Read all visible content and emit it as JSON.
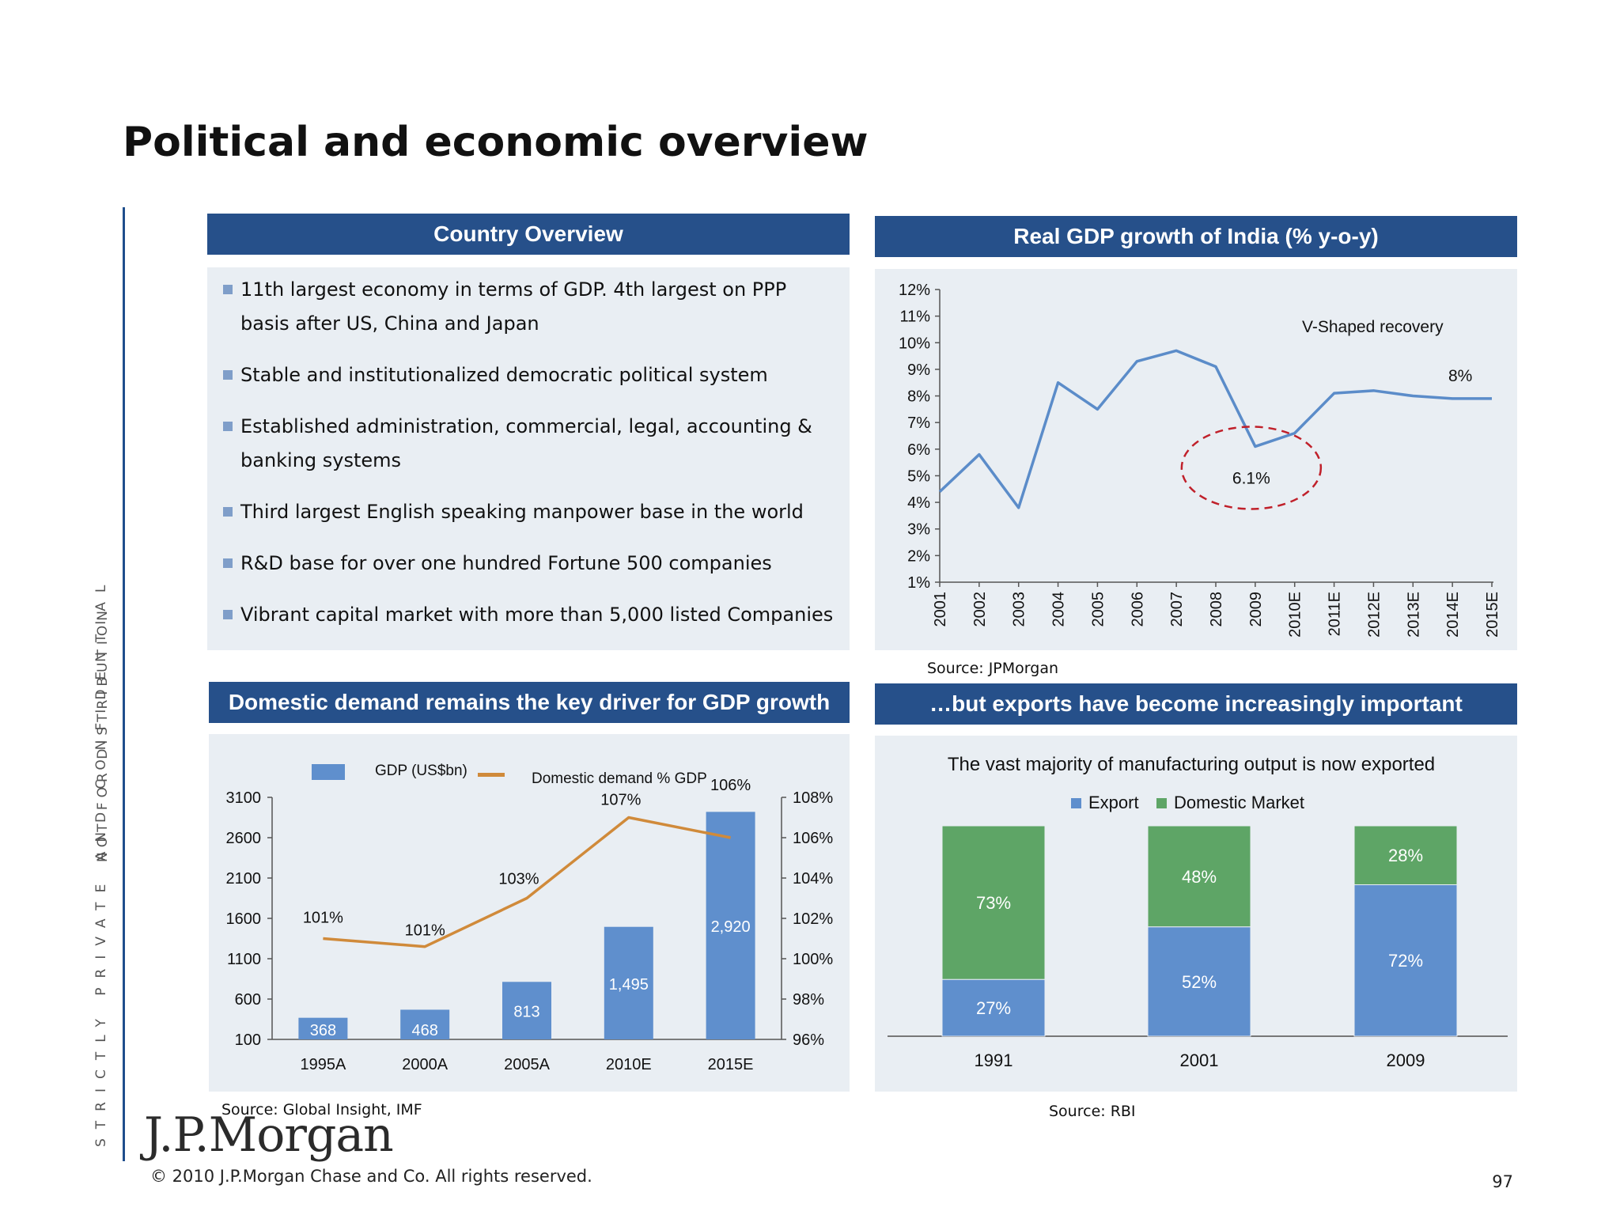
{
  "page": {
    "title": "Political and economic overview",
    "vertical_label_1": "STRICTLY PRIVATE AND CONFIDENTIAL",
    "vertical_label_2": "NOT FOR DISTRIBUTION",
    "logo_text": "J.P.Morgan",
    "copyright": "© 2010 J.P.Morgan Chase and Co.  All rights reserved.",
    "page_number": "97"
  },
  "country_overview": {
    "header": "Country Overview",
    "items": [
      "11th  largest economy in terms of GDP. 4th largest on PPP basis after US, China and Japan",
      "Stable and institutionalized democratic political system",
      " Established administration, commercial, legal, accounting & banking systems",
      "Third largest English speaking manpower base in the world",
      "R&D base for over one hundred Fortune 500 companies",
      "Vibrant capital market with more than 5,000 listed Companies"
    ]
  },
  "gdp_growth_panel": {
    "header": "Real GDP growth of India (% y-o-y)",
    "source": "Source: JPMorgan",
    "annotation": "V-Shaped recovery",
    "callout_2009": "6.1%",
    "callout_last": "8%"
  },
  "domestic_panel": {
    "header": "Domestic demand remains the key driver for GDP growth",
    "source": "Source: Global Insight, IMF"
  },
  "exports_panel": {
    "header": "…but exports have become increasingly important",
    "subtitle": "The vast majority of manufacturing output is now exported",
    "source": "Source: RBI"
  },
  "colors": {
    "header_blue": "#26508a",
    "panel_bg": "#e9eef3",
    "line_blue": "#5b8cc9",
    "bar_blue": "#5f8fcd",
    "domestic_orange": "#d08a3a",
    "export_green": "#5ea566",
    "circle_red": "#c0202a"
  },
  "chart_data": [
    {
      "type": "line",
      "title": "Real GDP growth of India (% y-o-y)",
      "x": [
        "2001",
        "2002",
        "2003",
        "2004",
        "2005",
        "2006",
        "2007",
        "2008",
        "2009",
        "2010E",
        "2011E",
        "2012E",
        "2013E",
        "2014E",
        "2015E"
      ],
      "y": [
        4.4,
        5.8,
        3.8,
        8.5,
        7.5,
        9.3,
        9.7,
        9.1,
        6.1,
        6.6,
        8.1,
        8.2,
        8.0,
        7.9,
        7.9
      ],
      "y_unit": "%",
      "ylim": [
        1,
        12
      ],
      "yticks": [
        "1%",
        "2%",
        "3%",
        "4%",
        "5%",
        "6%",
        "7%",
        "8%",
        "9%",
        "10%",
        "11%",
        "12%"
      ],
      "annotations": [
        "V-Shaped recovery",
        "6.1%",
        "8%"
      ],
      "grid": false
    },
    {
      "type": "bar",
      "title": "Domestic demand remains the key driver for GDP growth",
      "categories": [
        "1995A",
        "2000A",
        "2005A",
        "2010E",
        "2015E"
      ],
      "series": [
        {
          "name": "GDP (US$bn)",
          "type": "bar",
          "values": [
            368,
            468,
            813,
            1495,
            2920
          ],
          "labels": [
            "368",
            "468",
            "813",
            "1,495",
            "2,920"
          ]
        },
        {
          "name": "Domestic demand % GDP",
          "type": "line",
          "values": [
            101,
            101,
            103,
            107,
            106
          ],
          "labels": [
            "101%",
            "101%",
            "103%",
            "107%",
            "106%"
          ]
        }
      ],
      "y_left_ticks": [
        "100",
        "600",
        "1100",
        "1600",
        "2100",
        "2600",
        "3100"
      ],
      "y_left_lim": [
        100,
        3100
      ],
      "y_right_ticks": [
        "96%",
        "98%",
        "100%",
        "102%",
        "104%",
        "106%",
        "108%"
      ],
      "y_right_lim": [
        96,
        108
      ],
      "legend": "top"
    },
    {
      "type": "bar",
      "stacked": true,
      "title": "The vast majority of manufacturing output is now exported",
      "categories": [
        "1991",
        "2001",
        "2009"
      ],
      "series": [
        {
          "name": "Export",
          "values": [
            27,
            52,
            72
          ],
          "labels": [
            "27%",
            "52%",
            "72%"
          ]
        },
        {
          "name": "Domestic Market",
          "values": [
            73,
            48,
            28
          ],
          "labels": [
            "73%",
            "48%",
            "28%"
          ]
        }
      ],
      "legend": "top"
    }
  ]
}
